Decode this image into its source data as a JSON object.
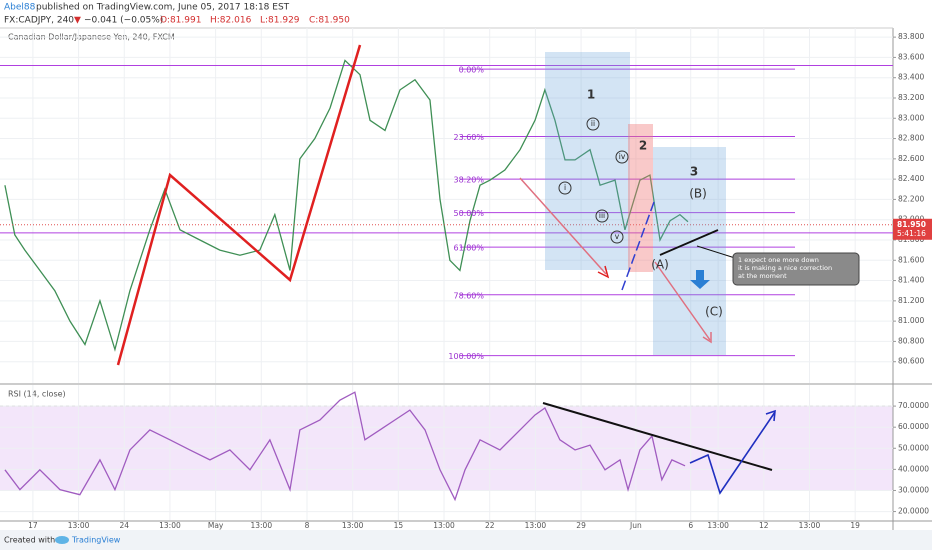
{
  "header": {
    "author": "Abel88",
    "published": "published on TradingView.com, June 05, 2017 18:18 EST",
    "symbol": "FX:CADJPY, 240",
    "change": "−0.041 (−0.05%)",
    "open": "O:81.991",
    "high": "H:82.016",
    "low": "L:81.929",
    "close": "C:81.950"
  },
  "chart_data": [
    {
      "type": "line",
      "title": "Canadian Dollar/Japanese Yen, 240, FXCM",
      "color": "#3f8f55",
      "x": [
        -1.53,
        -0.99,
        -0.44,
        0.38,
        1.2,
        2.03,
        2.85,
        3.67,
        4.49,
        5.31,
        6.4,
        7.22,
        8.05,
        9.14,
        10.23,
        11.33,
        12.42,
        13.24,
        14.07,
        14.61,
        15.43,
        16.26,
        17.08,
        17.9,
        18.45,
        19.27,
        20.09,
        20.91,
        21.73,
        22.28,
        22.82,
        23.37,
        23.92,
        24.47,
        25.01,
        25.83,
        26.66,
        27.48,
        28.02,
        28.57,
        29.12,
        29.67,
        30.49,
        31.04,
        31.86,
        32.4,
        33.22,
        33.77,
        34.32,
        34.87,
        35.41,
        35.85
      ],
      "values": [
        82.34,
        81.85,
        81.7,
        81.5,
        81.3,
        81.0,
        80.77,
        81.2,
        80.72,
        81.3,
        81.9,
        82.3,
        81.9,
        81.8,
        81.7,
        81.65,
        81.7,
        82.05,
        81.5,
        82.6,
        82.8,
        83.1,
        83.57,
        83.43,
        82.98,
        82.88,
        83.28,
        83.38,
        83.18,
        82.2,
        81.6,
        81.5,
        81.99,
        82.34,
        82.39,
        82.49,
        82.69,
        82.98,
        83.28,
        82.98,
        82.59,
        82.59,
        82.69,
        82.34,
        82.39,
        81.9,
        82.39,
        82.44,
        81.8,
        81.99,
        82.05,
        81.98
      ],
      "xlim": [
        -1.8,
        47.07
      ],
      "ylim": [
        80.39,
        83.89
      ],
      "yticks": [
        {
          "value": 80.6,
          "label": "80.600"
        },
        {
          "value": 80.8,
          "label": "80.800"
        },
        {
          "value": 81.0,
          "label": "81.000"
        },
        {
          "value": 81.2,
          "label": "81.200"
        },
        {
          "value": 81.4,
          "label": "81.400"
        },
        {
          "value": 81.6,
          "label": "81.600"
        },
        {
          "value": 81.8,
          "label": "81.800"
        },
        {
          "value": 82.0,
          "label": "82.000"
        },
        {
          "value": 82.2,
          "label": "82.200"
        },
        {
          "value": 82.4,
          "label": "82.400"
        },
        {
          "value": 82.6,
          "label": "82.600"
        },
        {
          "value": 82.8,
          "label": "82.800"
        },
        {
          "value": 83.0,
          "label": "83.000"
        },
        {
          "value": 83.2,
          "label": "83.200"
        },
        {
          "value": 83.4,
          "label": "83.400"
        },
        {
          "value": 83.6,
          "label": "83.600"
        },
        {
          "value": 83.8,
          "label": "83.800"
        }
      ],
      "fib_levels": [
        {
          "label": "0.00%",
          "value": 83.485
        },
        {
          "label": "23.60%",
          "value": 82.82
        },
        {
          "label": "38.20%",
          "value": 82.4
        },
        {
          "label": "50.00%",
          "value": 82.07
        },
        {
          "label": "61.80%",
          "value": 81.73
        },
        {
          "label": "78.60%",
          "value": 81.26
        },
        {
          "label": "100.00%",
          "value": 80.66
        }
      ],
      "horizontal_lines": [
        83.52,
        81.87
      ],
      "last_price": {
        "value": 81.95,
        "label": "81.950"
      },
      "countdown": "5:41:16"
    },
    {
      "type": "line",
      "title": "RSI (14, close)",
      "color": "#a05cc0",
      "x": [
        -1.53,
        -0.71,
        0.38,
        1.48,
        2.57,
        3.67,
        4.49,
        5.31,
        6.4,
        7.5,
        8.59,
        9.69,
        10.78,
        11.88,
        12.97,
        14.07,
        14.61,
        15.71,
        16.8,
        17.62,
        18.17,
        18.99,
        19.81,
        20.63,
        21.46,
        22.28,
        23.1,
        23.65,
        24.47,
        25.56,
        26.66,
        27.48,
        28.02,
        28.84,
        29.67,
        30.49,
        31.31,
        32.13,
        32.57,
        33.22,
        33.88,
        34.42,
        34.97,
        35.69
      ],
      "values": [
        39.8,
        30.4,
        39.8,
        30.4,
        28,
        44.5,
        30.4,
        49.2,
        58.7,
        54,
        49.2,
        44.5,
        49.2,
        39.8,
        54,
        30.4,
        58.7,
        63.4,
        72.8,
        76.6,
        54,
        58.7,
        63.4,
        68.1,
        58.7,
        39.8,
        25.7,
        39.8,
        54,
        49.2,
        58.7,
        65.8,
        69.1,
        54,
        49.2,
        51.5,
        39.8,
        44.5,
        30.4,
        49.2,
        55.8,
        35.1,
        44.5,
        41.7
      ],
      "xlim": [
        -1.8,
        47.07
      ],
      "ylim": [
        16,
        80
      ],
      "band": [
        30,
        70
      ],
      "yticks": [
        {
          "value": 20,
          "label": "20.0000"
        },
        {
          "value": 30,
          "label": "30.0000"
        },
        {
          "value": 40,
          "label": "40.0000"
        },
        {
          "value": 50,
          "label": "50.0000"
        },
        {
          "value": 60,
          "label": "60.0000"
        },
        {
          "value": 70,
          "label": "70.0000"
        }
      ],
      "xticks": [
        {
          "value": 0,
          "label": "17"
        },
        {
          "value": 2.5,
          "label": "13:00"
        },
        {
          "value": 5,
          "label": "24"
        },
        {
          "value": 7.5,
          "label": "13:00"
        },
        {
          "value": 10,
          "label": "May"
        },
        {
          "value": 12.5,
          "label": "13:00"
        },
        {
          "value": 15,
          "label": "8"
        },
        {
          "value": 17.5,
          "label": "13:00"
        },
        {
          "value": 20,
          "label": "15"
        },
        {
          "value": 22.5,
          "label": "13:00"
        },
        {
          "value": 25,
          "label": "22"
        },
        {
          "value": 27.5,
          "label": "13:00"
        },
        {
          "value": 30,
          "label": "29"
        },
        {
          "value": 33,
          "label": "Jun"
        },
        {
          "value": 36,
          "label": "6"
        },
        {
          "value": 37.5,
          "label": "13:00"
        },
        {
          "value": 40,
          "label": "12"
        },
        {
          "value": 42.5,
          "label": "13:00"
        },
        {
          "value": 45,
          "label": "19"
        }
      ]
    }
  ],
  "annotations": {
    "wave1": "1",
    "wave2": "2",
    "wave3": "3",
    "waveA": "(A)",
    "waveB": "(B)",
    "waveC": "(C)",
    "sub1": "i",
    "sub2": "ii",
    "sub3": "iii",
    "sub4": "iv",
    "sub5": "v",
    "comment": [
      "1 expect one more down",
      "it is making a nice correction",
      "at the moment"
    ]
  },
  "footer": {
    "created": "Created with",
    "brand": "TradingView"
  }
}
